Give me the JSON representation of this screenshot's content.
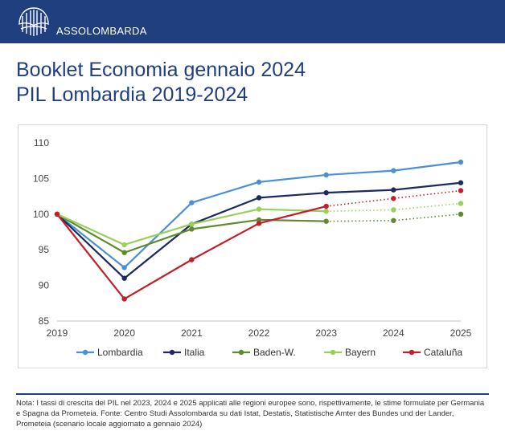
{
  "header": {
    "brand": "ASSOLOMBARDA",
    "logo_icon": "assolombarda-logo-icon",
    "bar_color": "#1f3f7f"
  },
  "title": {
    "line1": "Booklet Economia gennaio 2024",
    "line2": "PIL Lombardia 2019-2024"
  },
  "chart_data": {
    "type": "line",
    "x": [
      "2019",
      "2020",
      "2021",
      "2022",
      "2023",
      "2024",
      "2025"
    ],
    "ylim": [
      85,
      110
    ],
    "yticks": [
      "110",
      "105",
      "100",
      "95",
      "90",
      "85"
    ],
    "grid": false,
    "legend_position": "bottom",
    "series": [
      {
        "name": "Lombardia",
        "color": "#4a90d9",
        "values": [
          100,
          92.5,
          101.6,
          104.5,
          105.5,
          106.1,
          107.3
        ],
        "dotted_from_index": null
      },
      {
        "name": "Italia",
        "color": "#1c2a5e",
        "values": [
          100,
          91.0,
          98.6,
          102.3,
          103.0,
          103.4,
          104.4
        ],
        "dotted_from_index": null
      },
      {
        "name": "Baden-W.",
        "color": "#5f8a2e",
        "values": [
          100,
          94.6,
          97.9,
          99.2,
          99.0,
          99.1,
          100.0
        ],
        "dotted_from_index": 4
      },
      {
        "name": "Bayern",
        "color": "#98d15a",
        "values": [
          100,
          95.7,
          98.6,
          100.7,
          100.4,
          100.6,
          101.5
        ],
        "dotted_from_index": 4
      },
      {
        "name": "Cataluña",
        "color": "#c0202a",
        "values": [
          100,
          88.1,
          93.6,
          98.7,
          101.1,
          102.2,
          103.3
        ],
        "dotted_from_index": 4
      }
    ]
  },
  "note": "Nota: I tassi di crescita del PIL nel 2023, 2024 e 2025 applicati alle regioni europee sono, rispettivamente, le stime formulate per Germania e Spagna da Prometeia. Fonte: Centro Studi Assolombarda su dati Istat, Destatis, Statistische Amter des Bundes und der Lander, Prometeia (scenario locale aggiornato a gennaio 2024)"
}
